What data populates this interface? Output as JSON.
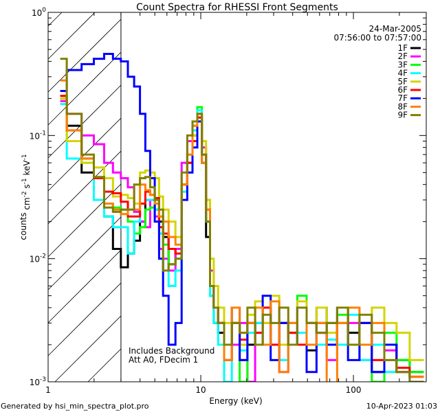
{
  "chart_data": {
    "type": "line",
    "title": "Count Spectra for RHESSI Front Segments",
    "xlabel": "Energy (keV)",
    "ylabel": "counts cm^-2 s^-1 keV^-1",
    "xscale": "log",
    "yscale": "log",
    "xlim": [
      1,
      300
    ],
    "ylim": [
      0.001,
      1
    ],
    "x_tick_labels": [
      {
        "value": 1,
        "label": "1"
      },
      {
        "value": 10,
        "label": "10"
      },
      {
        "value": 100,
        "label": "100"
      }
    ],
    "y_tick_labels": [
      {
        "value": 1,
        "base": "10",
        "exp": "0"
      },
      {
        "value": 0.1,
        "base": "10",
        "exp": "-1"
      },
      {
        "value": 0.01,
        "base": "10",
        "exp": "-2"
      },
      {
        "value": 0.001,
        "base": "10",
        "exp": "-3"
      }
    ],
    "hatched_region_kev": [
      1,
      3
    ],
    "date": "24-Mar-2005",
    "time_range": "07:56:00 to 07:57:00",
    "annotations": [
      "Includes Background",
      "Att A0, FDecim 1"
    ],
    "legend_placement": "top-right",
    "energy": [
      1.17,
      1.5,
      1.83,
      2.17,
      2.5,
      2.83,
      3.17,
      3.5,
      3.83,
      4.17,
      4.5,
      4.83,
      5.17,
      5.5,
      5.83,
      6.5,
      7.17,
      7.83,
      8.5,
      9.17,
      9.83,
      10.5,
      11.17,
      11.83,
      12.5,
      13.5,
      15,
      17,
      19,
      21.5,
      24,
      27,
      30.5,
      35,
      40,
      46,
      53,
      62,
      72,
      85,
      100,
      120,
      145,
      175,
      210,
      260
    ],
    "series": [
      {
        "name": "1F",
        "color": "#000000",
        "values": [
          0.2,
          0.12,
          0.05,
          0.045,
          0.022,
          0.012,
          0.0085,
          0.011,
          0.014,
          0.02,
          0.03,
          0.03,
          0.025,
          0.02,
          0.015,
          0.009,
          0.012,
          0.04,
          0.06,
          0.1,
          0.15,
          0.06,
          0.015,
          0.005,
          0.003,
          0.0025,
          0.002,
          0.003,
          0.0015,
          0.002,
          0.003,
          0.004,
          0.002,
          0.003,
          0.0025,
          0.002,
          0.0018,
          0.004,
          0.003,
          0.002,
          0.0025,
          0.003,
          0.0012,
          0.002,
          0.0015,
          0.0012
        ]
      },
      {
        "name": "2F",
        "color": "#ff00ff",
        "values": [
          0.19,
          0.15,
          0.1,
          0.085,
          0.06,
          0.05,
          0.045,
          0.038,
          0.024,
          0.02,
          0.018,
          0.03,
          0.022,
          0.012,
          0.01,
          0.008,
          0.012,
          0.06,
          0.09,
          0.12,
          0.14,
          0.08,
          0.03,
          0.008,
          0.004,
          0.003,
          0.0015,
          0.002,
          0.003,
          0.001,
          0.0025,
          0.003,
          0.002,
          0.0012,
          0.003,
          0.002,
          0.003,
          0.0025,
          0.0015,
          0.002,
          0.003,
          0.0015,
          0.002,
          0.0018,
          0.0012,
          0.0011
        ]
      },
      {
        "name": "3F",
        "color": "#00ff00",
        "values": [
          0.21,
          0.09,
          0.06,
          0.045,
          0.028,
          0.026,
          0.025,
          0.02,
          0.016,
          0.018,
          0.025,
          0.026,
          0.03,
          0.022,
          0.013,
          0.009,
          0.01,
          0.035,
          0.07,
          0.1,
          0.17,
          0.07,
          0.02,
          0.006,
          0.004,
          0.003,
          0.002,
          0.003,
          0.001,
          0.003,
          0.002,
          0.004,
          0.002,
          0.003,
          0.0025,
          0.005,
          0.002,
          0.003,
          0.002,
          0.0035,
          0.002,
          0.003,
          0.001,
          0.0025,
          0.0015,
          0.0012
        ]
      },
      {
        "name": "4F",
        "color": "#00ffff",
        "values": [
          0.18,
          0.065,
          0.065,
          0.03,
          0.022,
          0.018,
          0.018,
          0.011,
          0.02,
          0.028,
          0.03,
          0.03,
          0.025,
          0.016,
          0.008,
          0.006,
          0.008,
          0.035,
          0.07,
          0.11,
          0.16,
          0.06,
          0.02,
          0.005,
          0.003,
          0.002,
          0.001,
          0.003,
          0.0018,
          0.0025,
          0.003,
          0.002,
          0.003,
          0.0015,
          0.002,
          0.0025,
          0.003,
          0.002,
          0.0022,
          0.002,
          0.0035,
          0.0015,
          0.002,
          0.0012,
          0.0012,
          0.001
        ]
      },
      {
        "name": "5F",
        "color": "#d4d400",
        "values": [
          0.2,
          0.09,
          0.06,
          0.055,
          0.045,
          0.032,
          0.033,
          0.031,
          0.028,
          0.05,
          0.052,
          0.05,
          0.045,
          0.032,
          0.025,
          0.02,
          0.015,
          0.04,
          0.05,
          0.1,
          0.14,
          0.09,
          0.03,
          0.01,
          0.006,
          0.004,
          0.003,
          0.004,
          0.002,
          0.0035,
          0.0045,
          0.003,
          0.005,
          0.002,
          0.003,
          0.0045,
          0.003,
          0.004,
          0.0025,
          0.003,
          0.004,
          0.003,
          0.004,
          0.003,
          0.0025,
          0.0015
        ]
      },
      {
        "name": "6F",
        "color": "#ff0000",
        "values": [
          0.21,
          0.11,
          0.065,
          0.045,
          0.035,
          0.034,
          0.029,
          0.022,
          0.022,
          0.028,
          0.035,
          0.033,
          0.031,
          0.018,
          0.016,
          0.012,
          0.011,
          0.04,
          0.06,
          0.09,
          0.14,
          0.07,
          0.025,
          0.006,
          0.004,
          0.003,
          0.0015,
          0.003,
          0.0022,
          0.003,
          0.0025,
          0.004,
          0.002,
          0.003,
          0.0025,
          0.002,
          0.003,
          0.0025,
          0.002,
          0.003,
          0.002,
          0.003,
          0.0015,
          0.002,
          0.0013,
          0.0011
        ]
      },
      {
        "name": "7F",
        "color": "#0000ff",
        "values": [
          0.23,
          0.34,
          0.38,
          0.42,
          0.46,
          0.42,
          0.4,
          0.3,
          0.25,
          0.15,
          0.075,
          0.045,
          0.02,
          0.01,
          0.005,
          0.002,
          0.003,
          0.03,
          0.05,
          0.08,
          0.13,
          0.06,
          0.02,
          0.006,
          0.004,
          0.003,
          0.002,
          0.004,
          0.0015,
          0.003,
          0.002,
          0.005,
          0.0015,
          0.003,
          0.002,
          0.004,
          0.0012,
          0.003,
          0.002,
          0.004,
          0.0015,
          0.003,
          0.0012,
          0.002,
          0.0012,
          0.0011
        ]
      },
      {
        "name": "8F",
        "color": "#ff8000",
        "values": [
          0.28,
          0.11,
          0.065,
          0.046,
          0.028,
          0.025,
          0.023,
          0.025,
          0.025,
          0.04,
          0.036,
          0.033,
          0.028,
          0.022,
          0.02,
          0.015,
          0.013,
          0.04,
          0.07,
          0.12,
          0.15,
          0.06,
          0.025,
          0.006,
          0.004,
          0.003,
          0.0015,
          0.004,
          0.0025,
          0.003,
          0.004,
          0.002,
          0.0045,
          0.0012,
          0.003,
          0.004,
          0.002,
          0.003,
          0.0009,
          0.003,
          0.004,
          0.002,
          0.003,
          0.0015,
          0.0012,
          0.0011
        ]
      },
      {
        "name": "9F",
        "color": "#808000",
        "values": [
          0.42,
          0.15,
          0.07,
          0.046,
          0.026,
          0.024,
          0.025,
          0.025,
          0.04,
          0.045,
          0.046,
          0.038,
          0.03,
          0.025,
          0.008,
          0.009,
          0.01,
          0.05,
          0.1,
          0.13,
          0.15,
          0.07,
          0.02,
          0.006,
          0.004,
          0.003,
          0.002,
          0.003,
          0.0025,
          0.004,
          0.002,
          0.0035,
          0.003,
          0.004,
          0.002,
          0.004,
          0.003,
          0.0025,
          0.003,
          0.004,
          0.002,
          0.0035,
          0.0025,
          0.0015,
          0.0012,
          0.001
        ]
      }
    ]
  },
  "footer": {
    "generated_by": "Generated by hsi_min_spectra_plot.pro",
    "timestamp": "10-Apr-2023 01:03"
  }
}
